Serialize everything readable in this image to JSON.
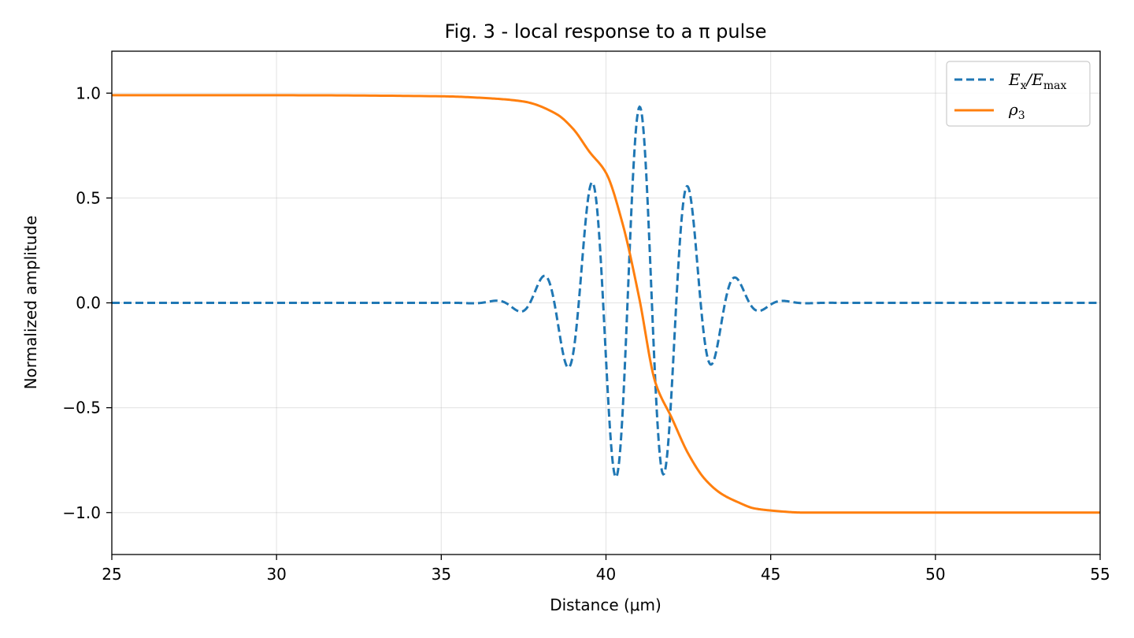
{
  "chart_data": {
    "type": "line",
    "title": "Fig. 3 - local response to a π pulse",
    "xlabel": "Distance (μm)",
    "ylabel": "Normalized amplitude",
    "xlim": [
      25,
      55
    ],
    "ylim": [
      -1.2,
      1.2
    ],
    "xticks": [
      25,
      30,
      35,
      40,
      45,
      50,
      55
    ],
    "xtick_labels": [
      "25",
      "30",
      "35",
      "40",
      "45",
      "50",
      "55"
    ],
    "yticks": [
      -1.0,
      -0.5,
      0.0,
      0.5,
      1.0
    ],
    "ytick_labels": [
      "−1.0",
      "−0.5",
      "0.0",
      "0.5",
      "1.0"
    ],
    "grid": true,
    "legend_position": "top-right",
    "series": [
      {
        "name": "E_x/E_max",
        "legend_main": "E",
        "legend_sub1": "x",
        "legend_mid": "/E",
        "legend_sub2": "max",
        "style": "dashed",
        "color": "#1f77b4",
        "envelope_center": 41.0,
        "envelope_width": 2.06,
        "carrier_period": 1.48,
        "x": [
          25,
          34.3,
          34.7,
          35.0,
          35.5,
          36.0,
          36.4,
          36.8,
          37.2,
          37.6,
          37.9,
          38.3,
          38.7,
          39.0,
          39.4,
          39.8,
          40.2,
          40.5,
          40.9,
          41.2,
          41.6,
          42.0,
          42.3,
          42.7,
          43.1,
          43.5,
          43.8,
          44.2,
          44.6,
          45.0,
          45.3,
          45.7,
          46.1,
          46.5,
          46.8,
          47.2,
          47.6,
          48.0,
          48.3,
          48.7,
          55
        ],
        "y": [
          0.0,
          -0.01,
          0.0,
          0.02,
          0.0,
          -0.04,
          0.07,
          0.0,
          -0.12,
          0.0,
          0.2,
          0.0,
          -0.32,
          0.0,
          0.51,
          0.0,
          -0.74,
          0.0,
          0.93,
          0.0,
          -0.92,
          0.0,
          0.74,
          0.0,
          -0.51,
          0.0,
          0.32,
          0.0,
          -0.2,
          0.0,
          0.12,
          0.0,
          -0.07,
          0.0,
          0.04,
          0.0,
          -0.02,
          0.0,
          0.01,
          0.0,
          0.0
        ]
      },
      {
        "name": "ρ_3",
        "legend_main": "ρ",
        "legend_sub1": "3",
        "style": "solid",
        "color": "#ff7f0e",
        "x": [
          25,
          30,
          35,
          36.5,
          37.5,
          38.5,
          39.0,
          39.5,
          40.0,
          40.5,
          41.0,
          41.5,
          42.0,
          42.5,
          43.0,
          43.5,
          44.0,
          44.5,
          45.0,
          46.0,
          47.0,
          55
        ],
        "y": [
          0.99,
          0.99,
          0.985,
          0.975,
          0.96,
          0.9,
          0.83,
          0.72,
          0.62,
          0.38,
          0.03,
          -0.38,
          -0.55,
          -0.72,
          -0.84,
          -0.91,
          -0.95,
          -0.98,
          -0.99,
          -1.0,
          -1.0,
          -1.0
        ]
      }
    ]
  }
}
